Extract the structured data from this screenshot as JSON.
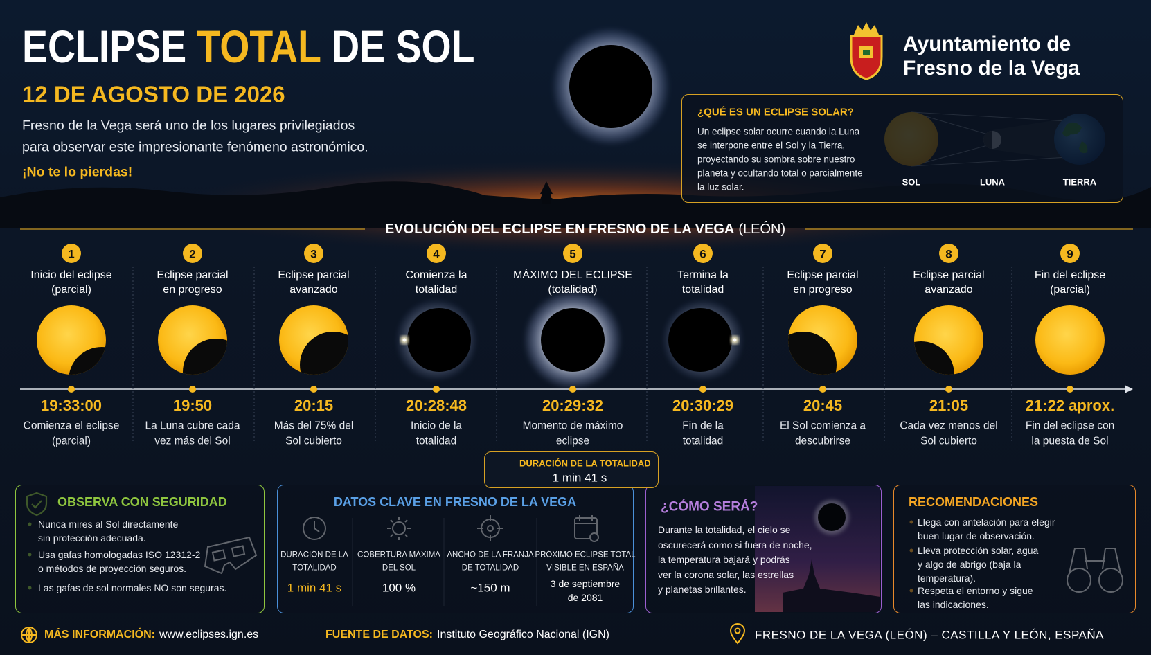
{
  "header": {
    "title": [
      "ECLIPSE",
      "TOTAL",
      "DE SOL"
    ],
    "date": "12 DE AGOSTO DE 2026",
    "intro": [
      "Fresno de la Vega será uno de los lugares privilegiados",
      "para observar este impresionante fenómeno astronómico."
    ],
    "callout": "¡No te lo pierdas!"
  },
  "organization": {
    "name": [
      "Ayuntamiento de",
      "Fresno de la Vega"
    ]
  },
  "explainer": {
    "title": "¿QUÉ ES UN ECLIPSE SOLAR?",
    "text": [
      "Un eclipse solar ocurre cuando la Luna",
      "se interpone entre el Sol y la Tierra,",
      "proyectando su sombra sobre nuestro",
      "planeta y ocultando total o parcialmente",
      "la luz solar."
    ],
    "labels": [
      "SOL",
      "LUNA",
      "TIERRA"
    ]
  },
  "timeline": {
    "title": "EVOLUCIÓN DEL ECLIPSE EN FRESNO DE LA VEGA",
    "subtitle": "(LEÓN)",
    "stages": [
      {
        "number": 1,
        "label": [
          "Inicio del eclipse",
          "(parcial)"
        ],
        "time": "19:33:00",
        "description": [
          "Comienza el eclipse",
          "(parcial)"
        ]
      },
      {
        "number": 2,
        "label": [
          "Eclipse parcial",
          "en progreso"
        ],
        "time": "19:50",
        "description": [
          "La Luna cubre cada",
          "vez más del Sol"
        ]
      },
      {
        "number": 3,
        "label": [
          "Eclipse parcial",
          "avanzado"
        ],
        "time": "20:15",
        "description": [
          "Más del 75% del",
          "Sol cubierto"
        ]
      },
      {
        "number": 4,
        "label": [
          "Comienza la",
          "totalidad"
        ],
        "time": "20:28:48",
        "description": [
          "Inicio de la",
          "totalidad"
        ]
      },
      {
        "number": 5,
        "label": [
          "MÁXIMO DEL ECLIPSE",
          "(totalidad)"
        ],
        "time": "20:29:32",
        "description": [
          "Momento de máximo",
          "eclipse"
        ]
      },
      {
        "number": 6,
        "label": [
          "Termina la",
          "totalidad"
        ],
        "time": "20:30:29",
        "description": [
          "Fin de la",
          "totalidad"
        ]
      },
      {
        "number": 7,
        "label": [
          "Eclipse parcial",
          "en progreso"
        ],
        "time": "20:45",
        "description": [
          "El Sol comienza a",
          "descubrirse"
        ]
      },
      {
        "number": 8,
        "label": [
          "Eclipse parcial",
          "avanzado"
        ],
        "time": "21:05",
        "description": [
          "Cada vez menos del",
          "Sol cubierto"
        ]
      },
      {
        "number": 9,
        "label": [
          "Fin del eclipse",
          "(parcial)"
        ],
        "time": "21:22 aprox.",
        "description": [
          "Fin del eclipse con",
          "la puesta de Sol"
        ]
      }
    ]
  },
  "duration": {
    "label": "DURACIÓN DE LA TOTALIDAD",
    "value": "1 min 41 s"
  },
  "safety": {
    "title": "OBSERVA CON SEGURIDAD",
    "items": [
      [
        "Nunca mires al Sol directamente",
        "sin protección adecuada."
      ],
      [
        "Usa gafas homologadas ISO 12312-2",
        "o métodos de proyección seguros."
      ],
      [
        "Las gafas de sol normales NO son seguras."
      ]
    ]
  },
  "key_data": {
    "title": "DATOS CLAVE EN FRESNO DE LA VEGA",
    "items": [
      {
        "label": [
          "DURACIÓN DE LA",
          "TOTALIDAD"
        ],
        "value": [
          "1 min 41 s"
        ]
      },
      {
        "label": [
          "COBERTURA MÁXIMA",
          "DEL SOL"
        ],
        "value": [
          "100 %"
        ]
      },
      {
        "label": [
          "ANCHO DE LA FRANJA",
          "DE TOTALIDAD"
        ],
        "value": [
          "~150 m"
        ]
      },
      {
        "label": [
          "PRÓXIMO ECLIPSE TOTAL",
          "VISIBLE EN ESPAÑA"
        ],
        "value": [
          "3 de septiembre",
          "de 2081"
        ]
      }
    ]
  },
  "how_it_will_be": {
    "title": "¿CÓMO SERÁ?",
    "text": [
      "Durante la totalidad, el cielo se",
      "oscurecerá como si fuera de noche,",
      "la temperatura bajará y podrás",
      "ver la corona solar, las estrellas",
      "y planetas brillantes."
    ]
  },
  "recommendations": {
    "title": "RECOMENDACIONES",
    "items": [
      [
        "Llega con antelación para elegir",
        "buen lugar de observación."
      ],
      [
        "Lleva protección solar, agua",
        "y algo de abrigo (baja la",
        "temperatura)."
      ],
      [
        "Respeta el entorno y sigue",
        "las indicaciones."
      ]
    ]
  },
  "footer": {
    "more_info": {
      "label": "MÁS INFORMACIÓN:",
      "value": "www.eclipses.ign.es"
    },
    "source": {
      "label": "FUENTE DE DATOS:",
      "value": "Instituto Geográfico Nacional (IGN)"
    },
    "location": "FRESNO DE LA VEGA (LEÓN) – CASTILLA Y LEÓN, ESPAÑA"
  }
}
